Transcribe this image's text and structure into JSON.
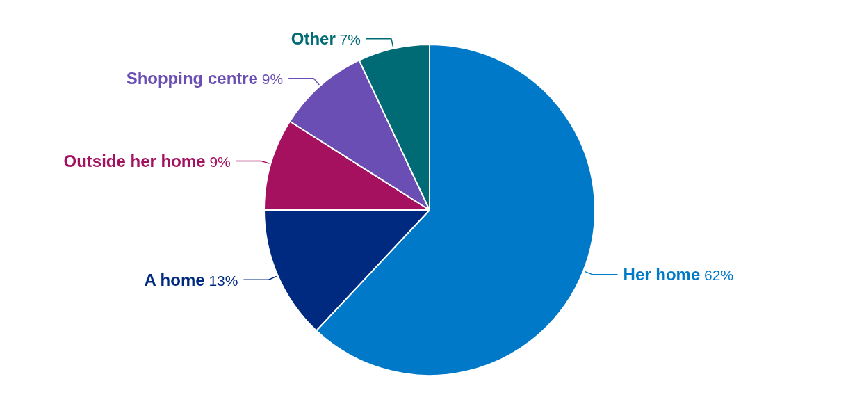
{
  "chart_data": {
    "type": "pie",
    "categories": [
      "Her home",
      "A home",
      "Outside her home",
      "Shopping centre",
      "Other"
    ],
    "values": [
      62,
      13,
      9,
      9,
      7
    ],
    "value_labels": [
      "62%",
      "13%",
      "9%",
      "9%",
      "7%"
    ],
    "colors": [
      "#007ac8",
      "#002a80",
      "#a5115f",
      "#6a4eb4",
      "#006b74"
    ]
  }
}
